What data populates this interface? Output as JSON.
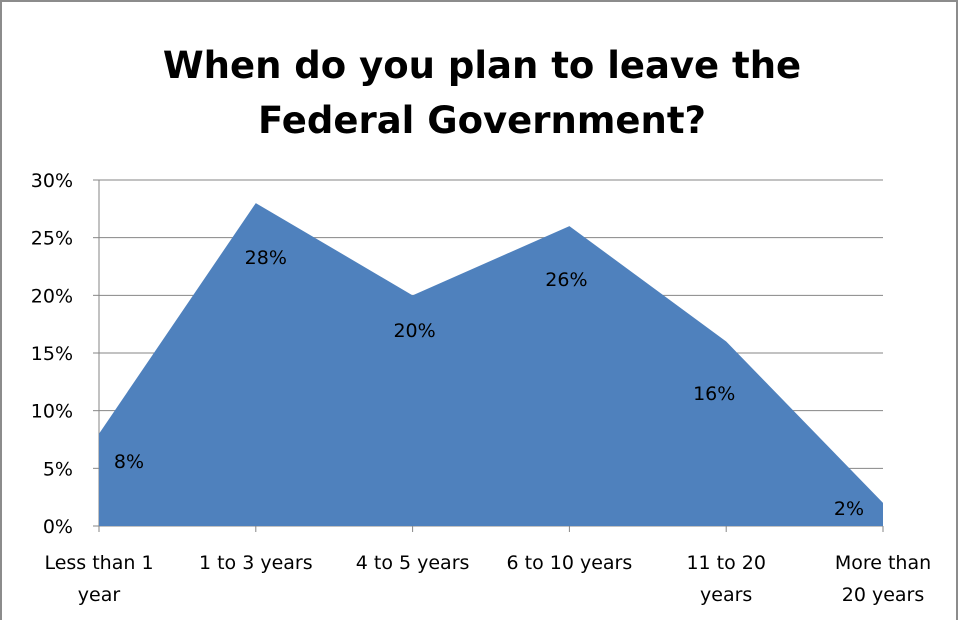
{
  "chart_data": {
    "type": "area",
    "title_lines": [
      "When do you plan to leave the",
      "Federal Government?"
    ],
    "categories": [
      [
        "Less than 1",
        "year"
      ],
      [
        "1 to 3 years"
      ],
      [
        "4 to 5 years"
      ],
      [
        "6 to 10 years"
      ],
      [
        "11 to 20",
        "years"
      ],
      [
        "More than",
        "20 years"
      ]
    ],
    "values": [
      8,
      28,
      20,
      26,
      16,
      2
    ],
    "data_labels": [
      "8%",
      "28%",
      "20%",
      "26%",
      "16%",
      "2%"
    ],
    "y_ticks": [
      0,
      5,
      10,
      15,
      20,
      25,
      30
    ],
    "y_tick_labels": [
      "0%",
      "5%",
      "10%",
      "15%",
      "20%",
      "25%",
      "30%"
    ],
    "ylim": [
      0,
      30
    ],
    "grid": true,
    "legend": "none",
    "series_color": "#4f81bd"
  }
}
